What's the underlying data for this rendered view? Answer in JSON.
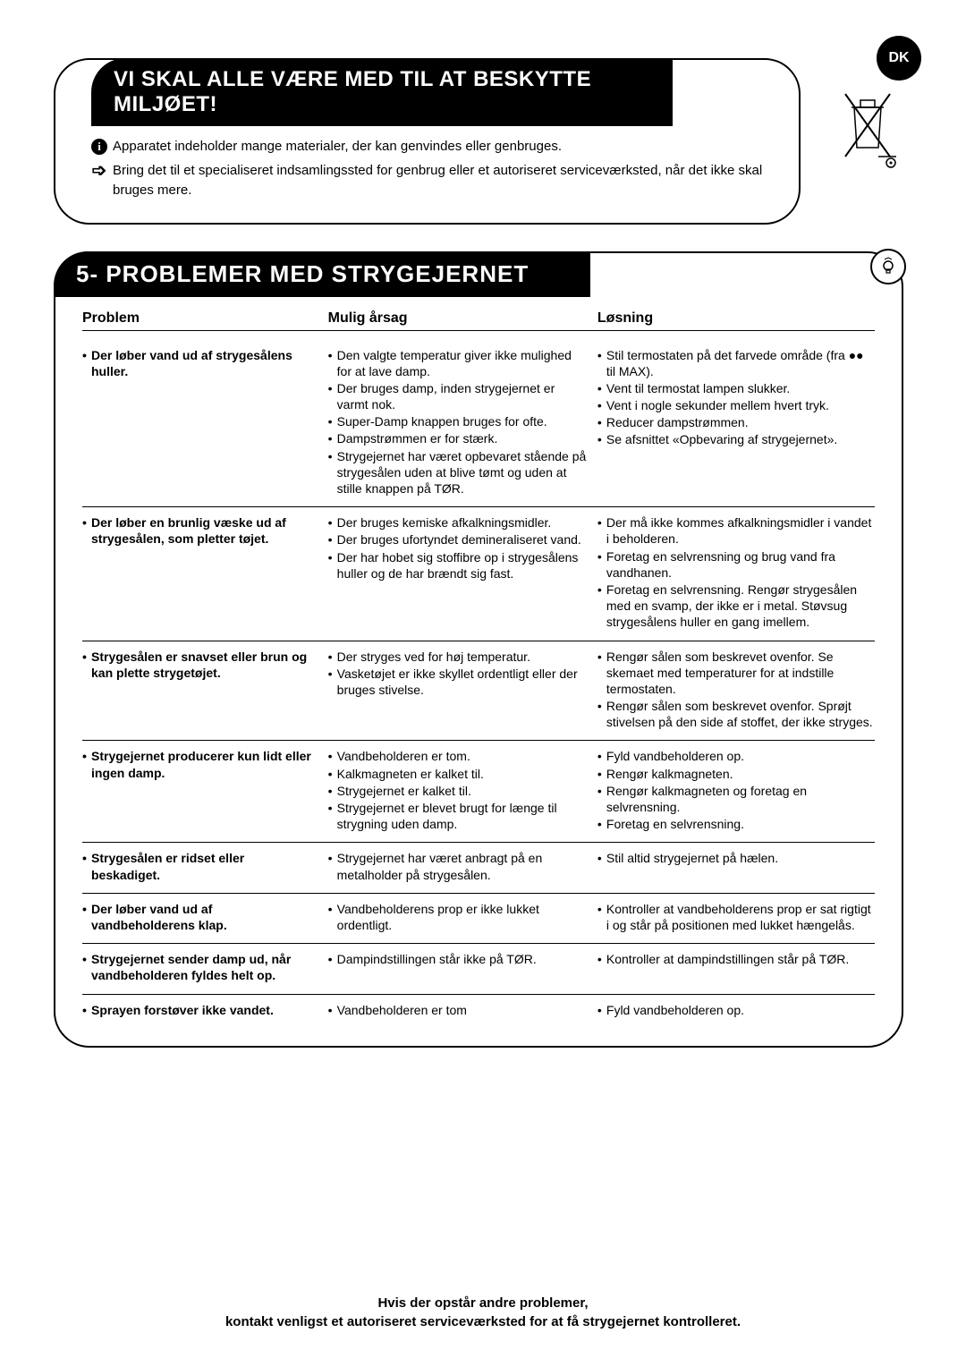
{
  "language_badge": "DK",
  "environment": {
    "title": "VI SKAL ALLE VÆRE MED TIL AT BESKYTTE MILJØET!",
    "line1": "Apparatet indeholder mange materialer, der kan genvindes eller genbruges.",
    "line2": "Bring det til et specialiseret indsamlingssted for genbrug eller et autoriseret serviceværksted, når det ikke skal bruges mere."
  },
  "problems": {
    "title": "5- PROBLEMER MED STRYGEJERNET",
    "headers": {
      "problem": "Problem",
      "cause": "Mulig årsag",
      "solution": "Løsning"
    },
    "rows": [
      {
        "problem": "Der løber vand ud af strygesålens huller.",
        "causes": [
          "Den valgte temperatur giver ikke mulighed for at lave damp.",
          "Der bruges damp, inden strygejernet er varmt nok.",
          "Super-Damp knappen bruges for ofte.",
          "Dampstrømmen er for stærk.",
          "Strygejernet har været opbevaret stående på strygesålen uden at blive tømt og uden at stille knappen på TØR."
        ],
        "solutions": [
          "Stil termostaten på det farvede område (fra ●● til MAX).",
          "Vent til termostat lampen slukker.",
          "Vent i nogle sekunder mellem hvert tryk.",
          "Reducer dampstrømmen.",
          "Se afsnittet «Opbevaring af strygejernet»."
        ]
      },
      {
        "problem": "Der løber en brunlig væske ud af strygesålen, som pletter tøjet.",
        "causes": [
          "Der bruges kemiske afkalkningsmidler.",
          "Der bruges ufortyndet demineraliseret vand.",
          "Der har hobet sig stoffibre op i strygesålens huller og de har brændt sig fast."
        ],
        "solutions": [
          "Der må ikke kommes afkalkningsmidler i vandet i beholderen.",
          "Foretag en selvrensning og brug vand fra vandhanen.",
          "Foretag en selvrensning. Rengør strygesålen med en svamp, der ikke er i metal. Støvsug strygesålens huller en gang imellem."
        ]
      },
      {
        "problem": "Strygesålen er snavset eller brun og kan plette strygetøjet.",
        "causes": [
          "Der stryges ved for høj temperatur.",
          "Vasketøjet er ikke skyllet ordentligt eller der bruges stivelse."
        ],
        "solutions": [
          "Rengør sålen som beskrevet ovenfor. Se skemaet med temperaturer for at indstille termostaten.",
          "Rengør sålen som beskrevet ovenfor. Sprøjt stivelsen på den side af stoffet, der ikke stryges."
        ]
      },
      {
        "problem": "Strygejernet producerer kun lidt eller ingen damp.",
        "causes": [
          "Vandbeholderen er tom.",
          "Kalkmagneten er kalket til.",
          "Strygejernet er kalket til.",
          "Strygejernet er blevet brugt for længe til strygning uden damp."
        ],
        "solutions": [
          "Fyld vandbeholderen op.",
          "Rengør kalkmagneten.",
          "Rengør kalkmagneten og foretag en selvrensning.",
          "Foretag en selvrensning."
        ]
      },
      {
        "problem": "Strygesålen er ridset eller beskadiget.",
        "causes": [
          "Strygejernet har været anbragt på en metalholder på strygesålen."
        ],
        "solutions": [
          "Stil altid strygejernet på hælen."
        ]
      },
      {
        "problem": "Der løber vand ud af vandbeholderens klap.",
        "causes": [
          "Vandbeholderens prop er ikke lukket ordentligt."
        ],
        "solutions": [
          "Kontroller at vandbeholderens prop er sat rigtigt i og står på positionen med lukket hængelås."
        ]
      },
      {
        "problem": "Strygejernet sender damp ud, når vandbeholderen fyldes helt op.",
        "causes": [
          "Dampindstillingen står ikke på TØR."
        ],
        "solutions": [
          "Kontroller at dampindstillingen står på TØR."
        ]
      },
      {
        "problem": "Sprayen forstøver ikke vandet.",
        "causes": [
          "Vandbeholderen er tom"
        ],
        "solutions": [
          "Fyld vandbeholderen op."
        ]
      }
    ]
  },
  "footer": {
    "line1": "Hvis der opstår andre problemer,",
    "line2": "kontakt venligst et autoriseret serviceværksted for at få strygejernet kontrolleret."
  },
  "colors": {
    "black": "#000000",
    "white": "#ffffff"
  }
}
